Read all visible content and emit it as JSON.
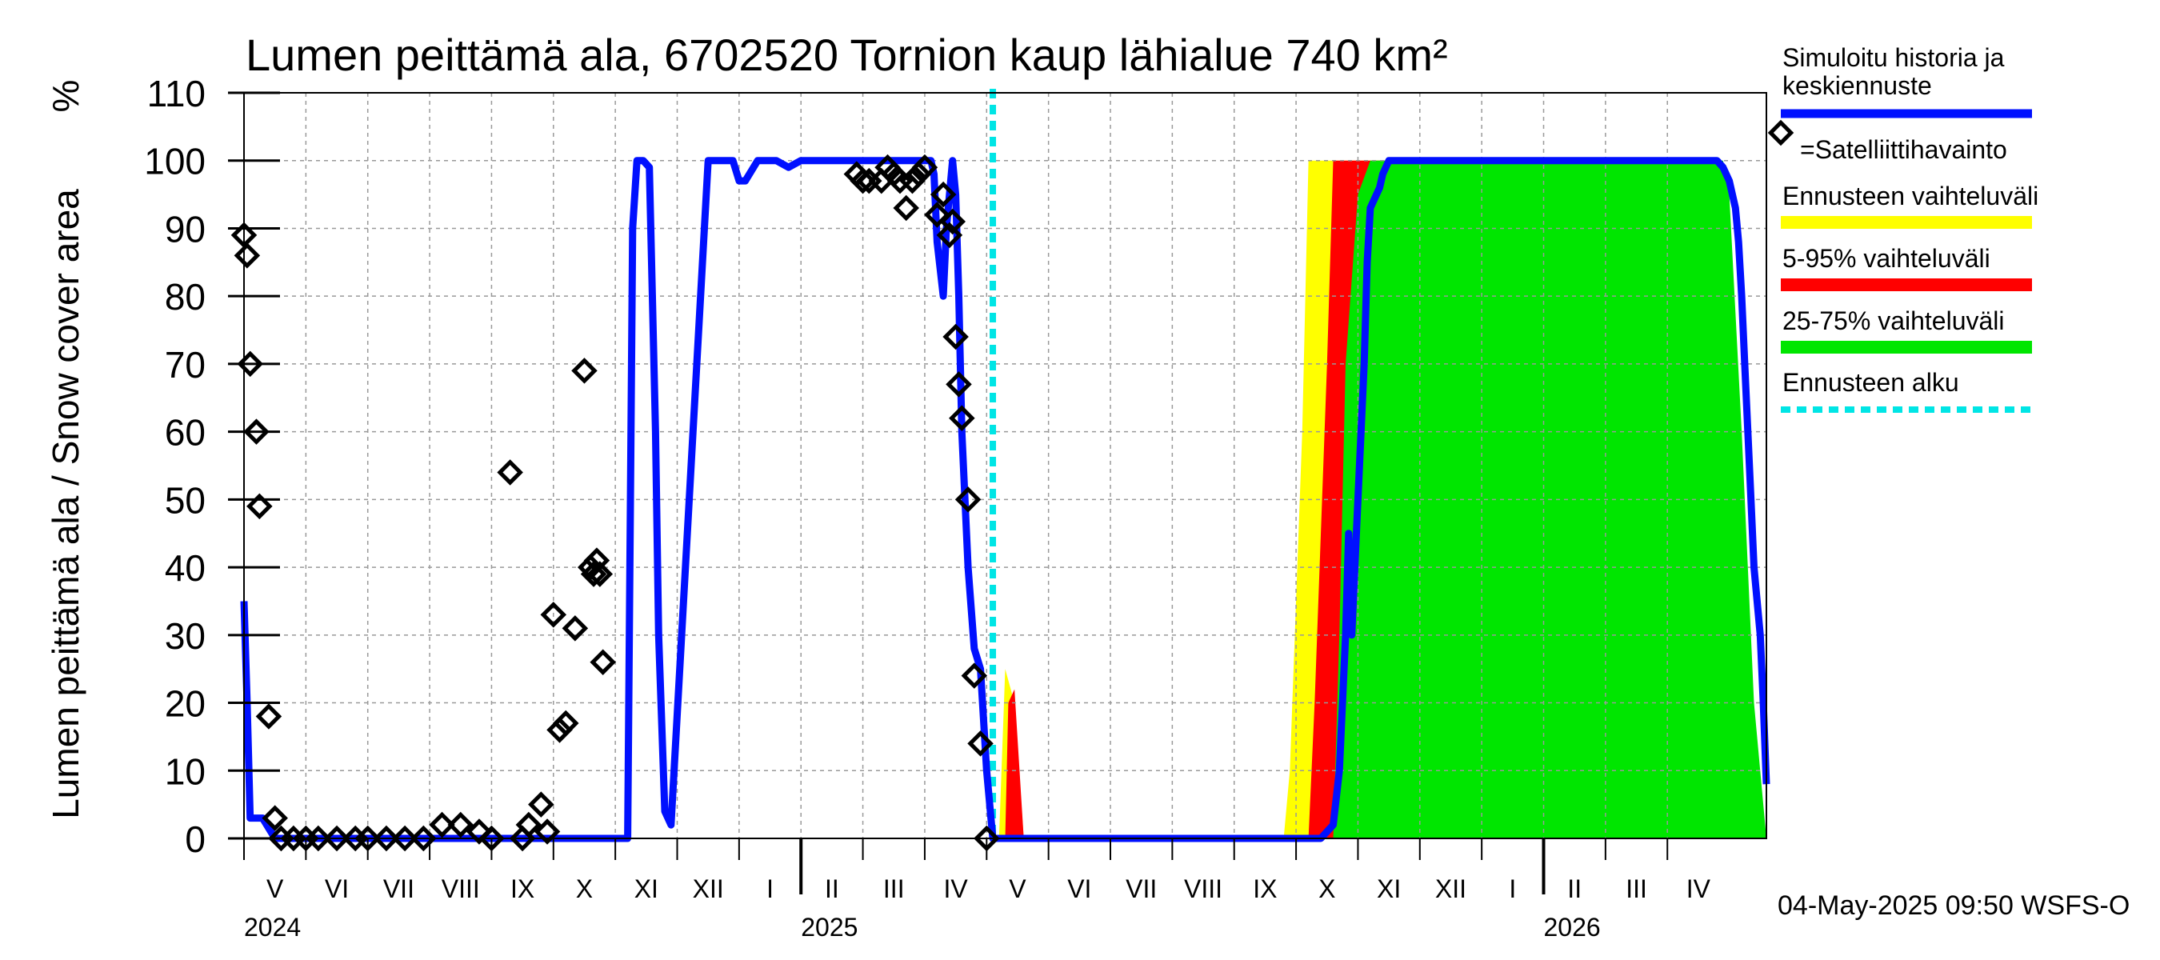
{
  "chart_data": {
    "type": "area",
    "title": "Lumen peittämä ala, 6702520 Tornion kaup lähialue 740 km²",
    "ylabel": "Lumen peittämä ala / Snow cover area",
    "yunit": "%",
    "ylim": [
      0,
      110
    ],
    "yticks": [
      0,
      10,
      20,
      30,
      40,
      50,
      60,
      70,
      80,
      90,
      100,
      110
    ],
    "grid": true,
    "legend_position": "right",
    "timestamp": "04-May-2025 09:50 WSFS-O",
    "x_axis": {
      "unit": "months since 2024-04-01",
      "xlim": [
        0,
        24.6
      ],
      "months": [
        {
          "label": "V",
          "start": 0
        },
        {
          "label": "VI",
          "start": 1
        },
        {
          "label": "VII",
          "start": 2
        },
        {
          "label": "VIII",
          "start": 3
        },
        {
          "label": "IX",
          "start": 4
        },
        {
          "label": "X",
          "start": 5
        },
        {
          "label": "XI",
          "start": 6
        },
        {
          "label": "XII",
          "start": 7
        },
        {
          "label": "I",
          "start": 8
        },
        {
          "label": "II",
          "start": 9
        },
        {
          "label": "III",
          "start": 10
        },
        {
          "label": "IV",
          "start": 11
        },
        {
          "label": "V",
          "start": 12
        },
        {
          "label": "VI",
          "start": 13
        },
        {
          "label": "VII",
          "start": 14
        },
        {
          "label": "VIII",
          "start": 15
        },
        {
          "label": "IX",
          "start": 16
        },
        {
          "label": "X",
          "start": 17
        },
        {
          "label": "XI",
          "start": 18
        },
        {
          "label": "XII",
          "start": 19
        },
        {
          "label": "I",
          "start": 20
        },
        {
          "label": "II",
          "start": 21
        },
        {
          "label": "III",
          "start": 22
        },
        {
          "label": "IV",
          "start": 23
        }
      ],
      "years": [
        {
          "label": "2024",
          "at": 0
        },
        {
          "label": "2025",
          "at": 9
        },
        {
          "label": "2026",
          "at": 21
        }
      ],
      "year_boundaries": [
        9,
        21
      ]
    },
    "forecast_start": 12.1,
    "legend": {
      "history": "Simuloitu historia ja keskiennuste",
      "satellite": "=Satelliittihavainto",
      "range": "Ennusteen vaihteluväli",
      "p5_95": "5-95% vaihteluväli",
      "p25_75": "25-75% vaihteluväli",
      "forecast_start": "Ennusteen alku"
    },
    "colors": {
      "history": "#0010ff",
      "range": "#ffff00",
      "p5_95": "#ff0000",
      "p25_75": "#00e600",
      "forecast_start": "#00e5e5",
      "grid": "#999999"
    },
    "series": [
      {
        "name": "Simuloitu historia ja keskiennuste",
        "x": [
          0,
          0.05,
          0.1,
          0.3,
          0.5,
          0.7,
          1.0,
          2.0,
          3.0,
          4.0,
          4.9,
          5.3,
          5.6,
          5.85,
          5.95,
          6.05,
          6.2,
          6.28,
          6.35,
          6.45,
          6.55,
          6.65,
          6.7,
          6.8,
          6.9,
          7.5,
          7.8,
          7.9,
          8.0,
          8.1,
          8.3,
          8.6,
          8.8,
          9.0,
          9.3,
          9.6,
          10.0,
          10.5,
          10.8,
          10.9,
          11.0,
          11.1,
          11.15,
          11.2,
          11.3,
          11.35,
          11.45,
          11.5,
          11.55,
          11.6,
          11.7,
          11.8,
          11.9,
          12.0,
          12.1,
          12.5,
          13,
          14,
          15,
          16,
          17,
          17.4,
          17.6,
          17.7,
          17.8,
          17.85,
          17.9,
          18.0,
          18.05,
          18.1,
          18.15,
          18.2,
          18.3,
          18.35,
          18.4,
          18.5,
          18.6,
          19,
          20,
          21,
          22,
          23,
          23.2,
          23.4,
          23.5,
          23.6,
          23.65,
          23.7,
          23.8,
          23.9,
          24.0,
          24.1,
          24.15,
          24.2,
          24.25,
          24.3,
          24.35,
          24.4,
          24.45,
          24.5,
          24.55,
          24.6
        ],
        "values": [
          35,
          20,
          3,
          3,
          0,
          0,
          0,
          0,
          0,
          0,
          0,
          0,
          0,
          0,
          0,
          0,
          0,
          90,
          100,
          100,
          99,
          60,
          30,
          4,
          2,
          100,
          100,
          100,
          97,
          97,
          100,
          100,
          99,
          100,
          100,
          100,
          100,
          100,
          100,
          100,
          100,
          100,
          98,
          88,
          80,
          90,
          100,
          95,
          80,
          60,
          40,
          28,
          25,
          10,
          0,
          0,
          0,
          0,
          0,
          0,
          0,
          0,
          2,
          10,
          30,
          45,
          30,
          50,
          60,
          70,
          85,
          93,
          95,
          96,
          98,
          100,
          100,
          100,
          100,
          100,
          100,
          100,
          100,
          100,
          100,
          100,
          100,
          100,
          100,
          99,
          97,
          93,
          88,
          80,
          70,
          60,
          50,
          40,
          35,
          30,
          20,
          8
        ]
      },
      {
        "name": "Ennusteen vaihteluväli",
        "x": [
          12.2,
          12.3,
          12.45,
          12.6,
          12.7,
          16.8,
          16.9,
          17.1,
          17.2,
          17.3,
          23.3,
          23.4,
          23.7,
          24.0,
          24.2,
          24.4,
          24.6
        ],
        "min": [
          0,
          0,
          0,
          0,
          0,
          0,
          0,
          0,
          0,
          0,
          0,
          0,
          0,
          0,
          0,
          0,
          0
        ],
        "max": [
          0,
          25,
          20,
          0,
          0,
          0,
          10,
          60,
          100,
          100,
          100,
          90,
          40,
          15,
          5,
          0,
          0
        ]
      },
      {
        "name": "5-95% vaihteluväli",
        "x": [
          12.3,
          12.35,
          12.45,
          12.6,
          12.7,
          17.2,
          17.3,
          17.5,
          17.6,
          17.8,
          23.5,
          23.6,
          23.8,
          24.0,
          24.2,
          24.4,
          24.6
        ],
        "min": [
          0,
          0,
          0,
          0,
          0,
          0,
          0,
          0,
          0,
          0,
          0,
          0,
          0,
          0,
          0,
          0,
          0
        ],
        "max": [
          0,
          20,
          22,
          0,
          0,
          0,
          20,
          70,
          100,
          100,
          100,
          95,
          60,
          35,
          15,
          3,
          0
        ]
      },
      {
        "name": "25-75% vaihteluväli",
        "x": [
          17.6,
          17.7,
          17.8,
          18.0,
          18.2,
          18.6,
          23.9,
          24.0,
          24.2,
          24.4,
          24.6
        ],
        "min": [
          0,
          0,
          0,
          0,
          0,
          0,
          0,
          0,
          0,
          0,
          0
        ],
        "max": [
          0,
          30,
          70,
          95,
          100,
          100,
          100,
          95,
          60,
          20,
          0
        ]
      }
    ],
    "satellite": {
      "name": "Satelliittihavainto",
      "x": [
        0.0,
        0.05,
        0.1,
        0.2,
        0.25,
        0.4,
        0.5,
        0.6,
        0.8,
        1.0,
        1.2,
        1.5,
        1.8,
        2.0,
        2.3,
        2.6,
        2.9,
        3.2,
        3.5,
        3.8,
        4.0,
        4.3,
        4.5,
        4.6,
        4.8,
        4.9,
        5.0,
        5.1,
        5.2,
        5.35,
        5.5,
        5.6,
        5.65,
        5.7,
        5.75,
        5.8,
        9.9,
        10.0,
        10.1,
        10.3,
        10.4,
        10.5,
        10.6,
        10.7,
        10.8,
        10.9,
        11.0,
        11.2,
        11.3,
        11.4,
        11.45,
        11.5,
        11.55,
        11.6,
        11.7,
        11.8,
        11.9,
        12.0
      ],
      "values": [
        89,
        86,
        70,
        60,
        49,
        18,
        3,
        0,
        0,
        0,
        0,
        0,
        0,
        0,
        0,
        0,
        0,
        2,
        2,
        1,
        0,
        54,
        0,
        2,
        5,
        1,
        33,
        16,
        17,
        31,
        69,
        40,
        39,
        41,
        39,
        26,
        98,
        97,
        97,
        97,
        99,
        98,
        97,
        93,
        97,
        98,
        99,
        92,
        95,
        89,
        91,
        74,
        67,
        62,
        50,
        24,
        14,
        0
      ]
    }
  }
}
